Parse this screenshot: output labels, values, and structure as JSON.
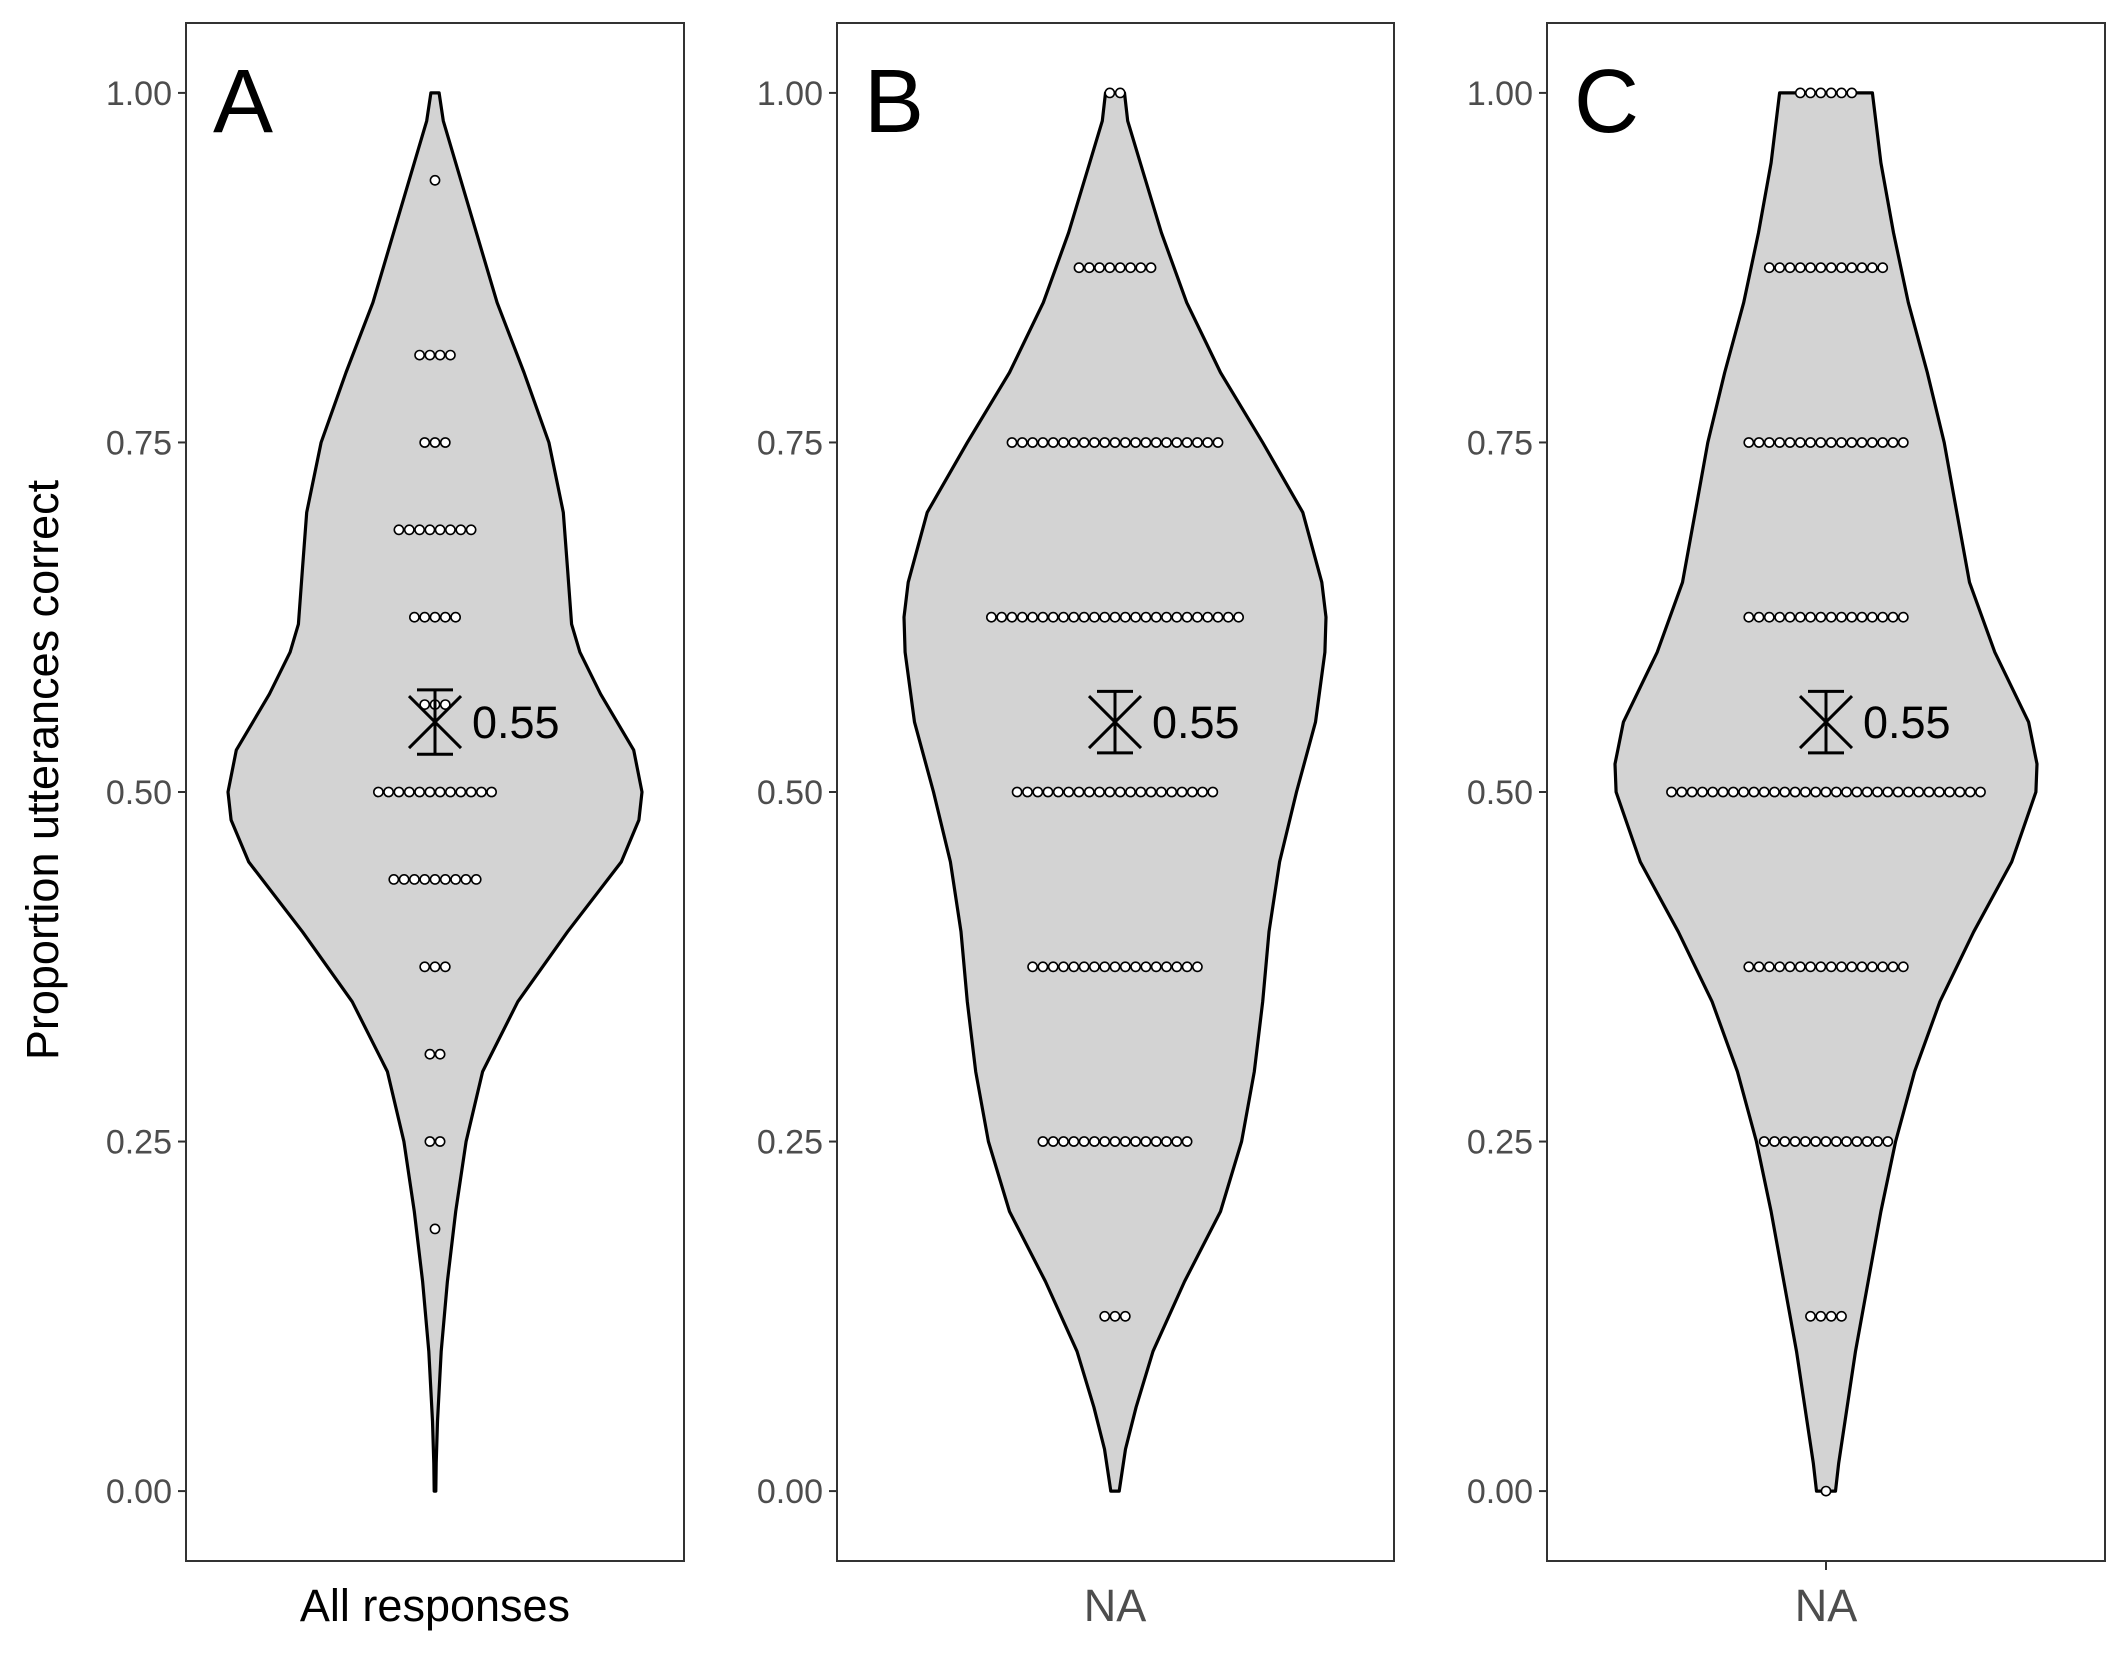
{
  "chart_data": [
    {
      "type": "violin",
      "panel_tag": "A",
      "xlabel": "All responses",
      "ylabel": "Proportion utterances correct",
      "ylim": [
        -0.05,
        1.05
      ],
      "yticks": [
        "0.00",
        "0.25",
        "0.50",
        "0.75",
        "1.00"
      ],
      "ytick_values": [
        0,
        0.25,
        0.5,
        0.75,
        1
      ],
      "show_x_tick": false,
      "mean": 0.55,
      "mean_label": "0.55",
      "error_bar": [
        0.527,
        0.573
      ],
      "density_profile": [
        [
          0.0,
          0.004
        ],
        [
          0.02,
          0.006
        ],
        [
          0.05,
          0.012
        ],
        [
          0.1,
          0.03
        ],
        [
          0.15,
          0.06
        ],
        [
          0.2,
          0.1
        ],
        [
          0.25,
          0.15
        ],
        [
          0.3,
          0.23
        ],
        [
          0.35,
          0.4
        ],
        [
          0.4,
          0.64
        ],
        [
          0.45,
          0.9
        ],
        [
          0.48,
          0.985
        ],
        [
          0.5,
          1.0
        ],
        [
          0.53,
          0.96
        ],
        [
          0.57,
          0.8
        ],
        [
          0.6,
          0.7
        ],
        [
          0.62,
          0.66
        ],
        [
          0.66,
          0.64
        ],
        [
          0.7,
          0.62
        ],
        [
          0.75,
          0.55
        ],
        [
          0.8,
          0.43
        ],
        [
          0.85,
          0.3
        ],
        [
          0.9,
          0.2
        ],
        [
          0.95,
          0.1
        ],
        [
          0.98,
          0.04
        ],
        [
          1.0,
          0.02
        ]
      ],
      "dots": [
        {
          "y": 0.1875,
          "count": 1
        },
        {
          "y": 0.25,
          "count": 2
        },
        {
          "y": 0.3125,
          "count": 2
        },
        {
          "y": 0.375,
          "count": 3
        },
        {
          "y": 0.4375,
          "count": 9
        },
        {
          "y": 0.5,
          "count": 12
        },
        {
          "y": 0.5625,
          "count": 3
        },
        {
          "y": 0.625,
          "count": 5
        },
        {
          "y": 0.6875,
          "count": 8
        },
        {
          "y": 0.75,
          "count": 3
        },
        {
          "y": 0.8125,
          "count": 4
        },
        {
          "y": 0.9375,
          "count": 1
        }
      ]
    },
    {
      "type": "violin",
      "panel_tag": "B",
      "xlabel": "NA",
      "ylim": [
        -0.05,
        1.05
      ],
      "yticks": [
        "0.00",
        "0.25",
        "0.50",
        "0.75",
        "1.00"
      ],
      "ytick_values": [
        0,
        0.25,
        0.5,
        0.75,
        1
      ],
      "show_x_tick": false,
      "mean": 0.55,
      "mean_label": "0.55",
      "error_bar": [
        0.528,
        0.572
      ],
      "density_profile": [
        [
          0.0,
          0.02
        ],
        [
          0.03,
          0.05
        ],
        [
          0.06,
          0.1
        ],
        [
          0.1,
          0.18
        ],
        [
          0.15,
          0.33
        ],
        [
          0.2,
          0.5
        ],
        [
          0.25,
          0.6
        ],
        [
          0.3,
          0.66
        ],
        [
          0.35,
          0.7
        ],
        [
          0.4,
          0.73
        ],
        [
          0.45,
          0.78
        ],
        [
          0.5,
          0.86
        ],
        [
          0.55,
          0.95
        ],
        [
          0.6,
          0.995
        ],
        [
          0.625,
          1.0
        ],
        [
          0.65,
          0.98
        ],
        [
          0.7,
          0.89
        ],
        [
          0.75,
          0.7
        ],
        [
          0.8,
          0.5
        ],
        [
          0.85,
          0.34
        ],
        [
          0.9,
          0.22
        ],
        [
          0.95,
          0.12
        ],
        [
          0.98,
          0.06
        ],
        [
          1.0,
          0.045
        ]
      ],
      "dots": [
        {
          "y": 0.125,
          "count": 3
        },
        {
          "y": 0.25,
          "count": 15
        },
        {
          "y": 0.375,
          "count": 17
        },
        {
          "y": 0.5,
          "count": 20
        },
        {
          "y": 0.625,
          "count": 25
        },
        {
          "y": 0.75,
          "count": 21
        },
        {
          "y": 0.875,
          "count": 8
        },
        {
          "y": 1.0,
          "count": 2
        }
      ]
    },
    {
      "type": "violin",
      "panel_tag": "C",
      "xlabel": "NA",
      "ylim": [
        -0.05,
        1.05
      ],
      "yticks": [
        "0.00",
        "0.25",
        "0.50",
        "0.75",
        "1.00"
      ],
      "ytick_values": [
        0,
        0.25,
        0.5,
        0.75,
        1
      ],
      "show_x_tick": true,
      "mean": 0.55,
      "mean_label": "0.55",
      "error_bar": [
        0.528,
        0.572
      ],
      "density_profile": [
        [
          0.0,
          0.045
        ],
        [
          0.02,
          0.06
        ],
        [
          0.05,
          0.09
        ],
        [
          0.1,
          0.14
        ],
        [
          0.15,
          0.2
        ],
        [
          0.2,
          0.26
        ],
        [
          0.25,
          0.33
        ],
        [
          0.3,
          0.42
        ],
        [
          0.35,
          0.54
        ],
        [
          0.4,
          0.7
        ],
        [
          0.45,
          0.88
        ],
        [
          0.5,
          0.995
        ],
        [
          0.52,
          1.0
        ],
        [
          0.55,
          0.96
        ],
        [
          0.6,
          0.8
        ],
        [
          0.65,
          0.68
        ],
        [
          0.7,
          0.62
        ],
        [
          0.75,
          0.56
        ],
        [
          0.8,
          0.48
        ],
        [
          0.85,
          0.39
        ],
        [
          0.9,
          0.32
        ],
        [
          0.95,
          0.26
        ],
        [
          1.0,
          0.22
        ]
      ],
      "dots": [
        {
          "y": 0.0,
          "count": 1
        },
        {
          "y": 0.125,
          "count": 4
        },
        {
          "y": 0.25,
          "count": 13
        },
        {
          "y": 0.375,
          "count": 16
        },
        {
          "y": 0.5,
          "count": 31
        },
        {
          "y": 0.625,
          "count": 16
        },
        {
          "y": 0.75,
          "count": 16
        },
        {
          "y": 0.875,
          "count": 12
        },
        {
          "y": 1.0,
          "count": 6
        }
      ]
    }
  ]
}
